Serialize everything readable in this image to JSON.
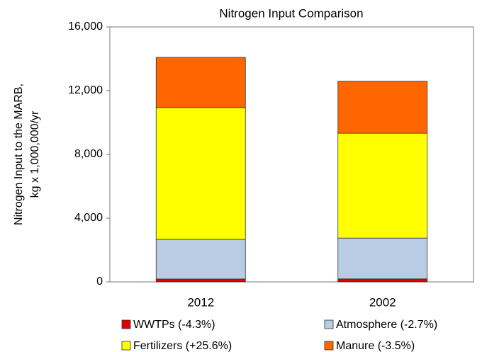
{
  "chart_data": {
    "type": "stacked_bar",
    "title": "Nitrogen Input Comparison",
    "ylabel": [
      "Nitrogen Input to the MARB,",
      "kg x 1,000,000/yr"
    ],
    "categories": [
      "2012",
      "2002"
    ],
    "series": [
      {
        "name": "WWTPs (-4.3%)",
        "color": "#e00000",
        "values": [
          180,
          188
        ]
      },
      {
        "name": "Atmosphere (-2.7%)",
        "color": "#b8cce4",
        "values": [
          2490,
          2560
        ]
      },
      {
        "name": "Fertilizers (+25.6%)",
        "color": "#ffff00",
        "values": [
          8270,
          6580
        ]
      },
      {
        "name": "Manure (-3.5%)",
        "color": "#ff6600",
        "values": [
          3150,
          3265
        ]
      }
    ],
    "ylim": [
      0,
      16000
    ],
    "yticks": [
      0,
      {
        "value": 4000,
        "label": "4,000"
      },
      {
        "value": 8000,
        "label": "8,000"
      },
      {
        "value": 12000,
        "label": "12,000"
      },
      {
        "value": 16000,
        "label": "16,000"
      }
    ],
    "grid": false,
    "legend": "bottom"
  }
}
